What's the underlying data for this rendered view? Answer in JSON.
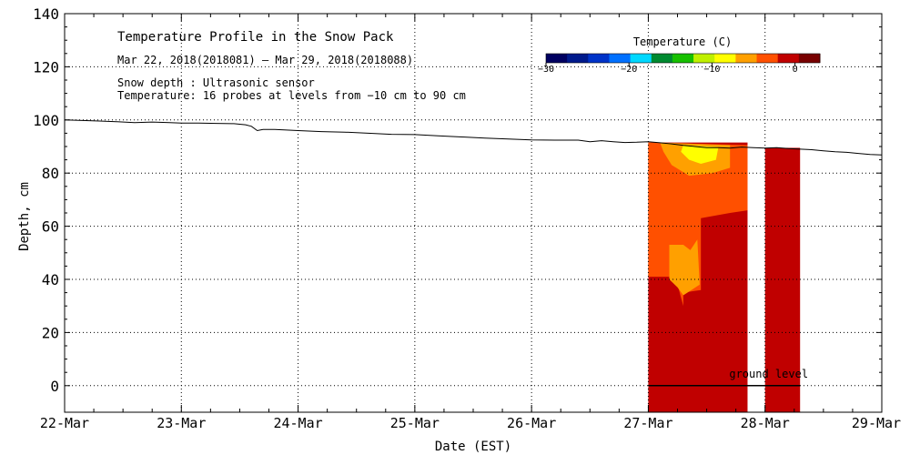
{
  "chart_data": {
    "type": "heatmap",
    "title": "Temperature Profile in the Snow Pack",
    "date_range": "Mar 22, 2018(2018081) – Mar 29, 2018(2018088)",
    "note_1": "Snow depth : Ultrasonic sensor",
    "note_2": "Temperature: 16 probes at levels from −10 cm to 90 cm",
    "xlabel": "Date (EST)",
    "ylabel": "Depth, cm",
    "x_ticks": [
      "22-Mar",
      "23-Mar",
      "24-Mar",
      "25-Mar",
      "26-Mar",
      "27-Mar",
      "28-Mar",
      "29-Mar"
    ],
    "xlim": [
      0,
      7
    ],
    "ylim": [
      -10,
      140
    ],
    "y_ticks": [
      "0",
      "20",
      "40",
      "60",
      "80",
      "100",
      "120",
      "140"
    ],
    "grid": true,
    "colorbar": {
      "label": "Temperature (C)",
      "ticks": [
        "−30",
        "−20",
        "−10",
        "0"
      ],
      "range": [
        -30,
        3
      ],
      "colors": [
        "#000060",
        "#001a8c",
        "#0033c8",
        "#0070ff",
        "#00d8ff",
        "#008a30",
        "#17c000",
        "#bff000",
        "#ffff00",
        "#ffa000",
        "#ff5000",
        "#c00000",
        "#780000"
      ]
    },
    "snow_depth": {
      "name": "Snow depth",
      "x": [
        0.0,
        0.15,
        0.3,
        0.45,
        0.6,
        0.75,
        0.9,
        1.0,
        1.15,
        1.3,
        1.45,
        1.55,
        1.6,
        1.65,
        1.7,
        1.8,
        2.0,
        2.2,
        2.4,
        2.6,
        2.8,
        3.0,
        3.2,
        3.4,
        3.6,
        3.8,
        4.0,
        4.2,
        4.4,
        4.5,
        4.6,
        4.7,
        4.8,
        4.9,
        5.0,
        5.1,
        5.2,
        5.3,
        5.4,
        5.5,
        5.6,
        5.7,
        5.8,
        5.9,
        6.0,
        6.1,
        6.2,
        6.3,
        6.4,
        6.5,
        6.6,
        6.7,
        6.8,
        6.9,
        7.0
      ],
      "values": [
        100.0,
        99.8,
        99.6,
        99.3,
        99.0,
        99.2,
        99.0,
        98.8,
        98.8,
        98.7,
        98.6,
        98.2,
        97.6,
        96.0,
        96.4,
        96.4,
        96.0,
        95.6,
        95.4,
        95.0,
        94.6,
        94.5,
        94.0,
        93.6,
        93.2,
        92.8,
        92.5,
        92.4,
        92.4,
        91.8,
        92.2,
        91.8,
        91.5,
        91.6,
        91.8,
        91.4,
        91.0,
        90.4,
        90.0,
        89.6,
        89.6,
        89.4,
        89.8,
        89.6,
        89.4,
        89.6,
        89.2,
        89.0,
        88.8,
        88.4,
        88.0,
        87.8,
        87.4,
        87.0,
        86.8
      ]
    },
    "temperature_bands": [
      {
        "x_start": 5.0,
        "x_end": 5.85,
        "y_min": -10,
        "y_max": 91.5,
        "temperature": -1.5
      },
      {
        "x_start": 6.0,
        "x_end": 6.3,
        "y_min": -10,
        "y_max": 89.5,
        "temperature": -1.5
      }
    ],
    "temperature_regions": [
      {
        "name": "orange zone",
        "temperature": -3.5,
        "points": [
          [
            5.0,
            91.5
          ],
          [
            5.85,
            90.5
          ],
          [
            5.85,
            66
          ],
          [
            5.7,
            65
          ],
          [
            5.45,
            63
          ],
          [
            5.45,
            36
          ],
          [
            5.3,
            35
          ],
          [
            5.3,
            30
          ],
          [
            5.25,
            38
          ],
          [
            5.18,
            41
          ],
          [
            5.0,
            41
          ]
        ]
      },
      {
        "name": "light orange zone",
        "temperature": -5.5,
        "points": [
          [
            5.18,
            53
          ],
          [
            5.3,
            53
          ],
          [
            5.36,
            51
          ],
          [
            5.42,
            55
          ],
          [
            5.44,
            38
          ],
          [
            5.3,
            34
          ],
          [
            5.25,
            37
          ],
          [
            5.18,
            40
          ]
        ]
      },
      {
        "name": "warm-yellow zone",
        "temperature": -6.5,
        "points": [
          [
            5.1,
            91.5
          ],
          [
            5.7,
            90.5
          ],
          [
            5.7,
            82
          ],
          [
            5.55,
            80
          ],
          [
            5.35,
            79
          ],
          [
            5.2,
            83
          ],
          [
            5.13,
            88
          ]
        ]
      },
      {
        "name": "yellow core",
        "temperature": -8.0,
        "points": [
          [
            5.3,
            90.5
          ],
          [
            5.6,
            89.8
          ],
          [
            5.58,
            85
          ],
          [
            5.45,
            83.5
          ],
          [
            5.35,
            85
          ],
          [
            5.28,
            88
          ]
        ]
      }
    ],
    "annotation": {
      "text": "ground level",
      "x": 6.0,
      "y": 3,
      "line_x": [
        5.0,
        6.3
      ],
      "line_y": 0
    }
  }
}
